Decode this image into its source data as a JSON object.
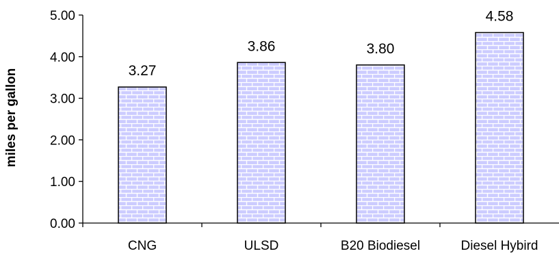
{
  "chart_data": {
    "type": "bar",
    "categories": [
      "CNG",
      "ULSD",
      "B20 Biodiesel",
      "Diesel Hybird"
    ],
    "values": [
      3.27,
      3.86,
      3.8,
      4.58
    ],
    "data_labels": [
      "3.27",
      "3.86",
      "3.80",
      "4.58"
    ],
    "title": "",
    "xlabel": "",
    "ylabel": "miles per gallon",
    "ylim": [
      0,
      5
    ],
    "yticks": [
      "0.00",
      "1.00",
      "2.00",
      "3.00",
      "4.00",
      "5.00"
    ],
    "grid": false,
    "legend": "none",
    "bar_fill": "#ccccff",
    "bar_pattern": "brick",
    "bar_pattern_color": "#ffffff",
    "bar_outline": "#000000"
  }
}
